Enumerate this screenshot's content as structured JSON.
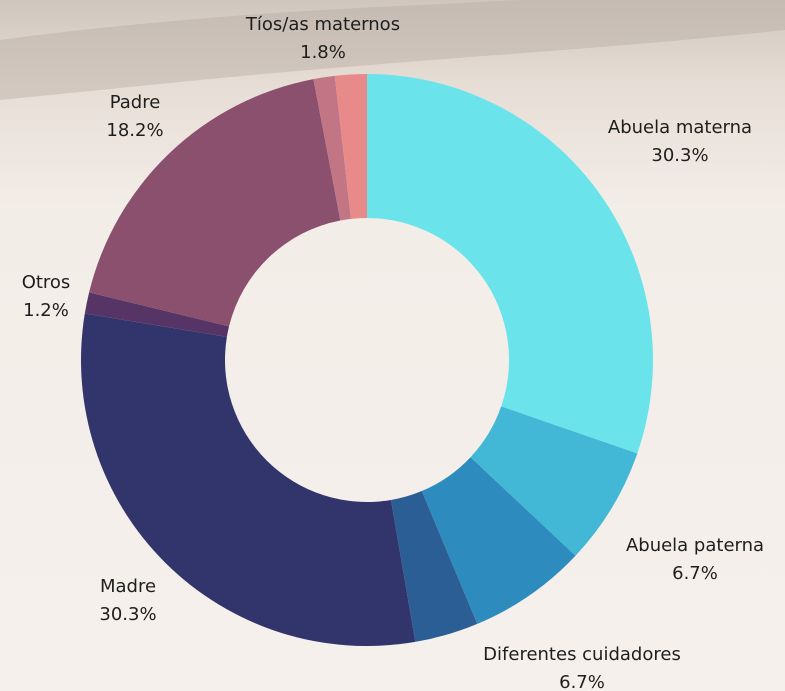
{
  "chart_data": {
    "type": "donut",
    "categories": [
      "Abuela materna",
      "Abuela paterna",
      "Diferentes cuidadores",
      null,
      "Madre",
      "Otros",
      "Padre",
      null,
      "Tíos/as maternos"
    ],
    "values": [
      30.3,
      6.7,
      6.7,
      3.6,
      30.3,
      1.2,
      18.2,
      1.2,
      1.8
    ],
    "value_labels": [
      "30.3%",
      "6.7%",
      "6.7%",
      null,
      "30.3%",
      "1.2%",
      "18.2%",
      null,
      "1.8%"
    ],
    "colors": [
      "#6ae4ea",
      "#42b8d6",
      "#2e8bbd",
      "#2c5e96",
      "#32346c",
      "#563566",
      "#8a506e",
      "#c27584",
      "#e88a8a"
    ]
  }
}
